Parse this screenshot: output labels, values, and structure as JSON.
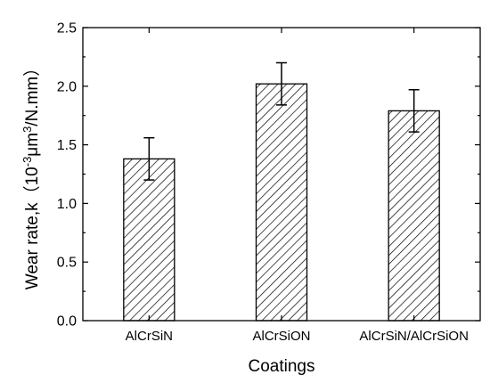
{
  "chart_data": {
    "type": "bar",
    "categories": [
      "AlCrSiN",
      "AlCrSiON",
      "AlCrSiN/AlCrSiON"
    ],
    "values": [
      1.38,
      2.02,
      1.79
    ],
    "errors": [
      0.18,
      0.18,
      0.18
    ],
    "ylim": [
      0.0,
      2.5
    ],
    "yticks": [
      0.0,
      0.5,
      1.0,
      1.5,
      2.0,
      2.5
    ],
    "ytick_labels": [
      "0.0",
      "0.5",
      "1.0",
      "1.5",
      "2.0",
      "2.5"
    ],
    "xlabel": "Coatings",
    "ylabel": {
      "prefix": "Wear rate,k（",
      "a": "10",
      "sup1": "-3",
      "b": "μm",
      "sup2": "3",
      "c": "/N.mm）"
    },
    "fill_pattern": "diagonal-hatch",
    "bar_stroke": "#000000",
    "grid": false
  }
}
